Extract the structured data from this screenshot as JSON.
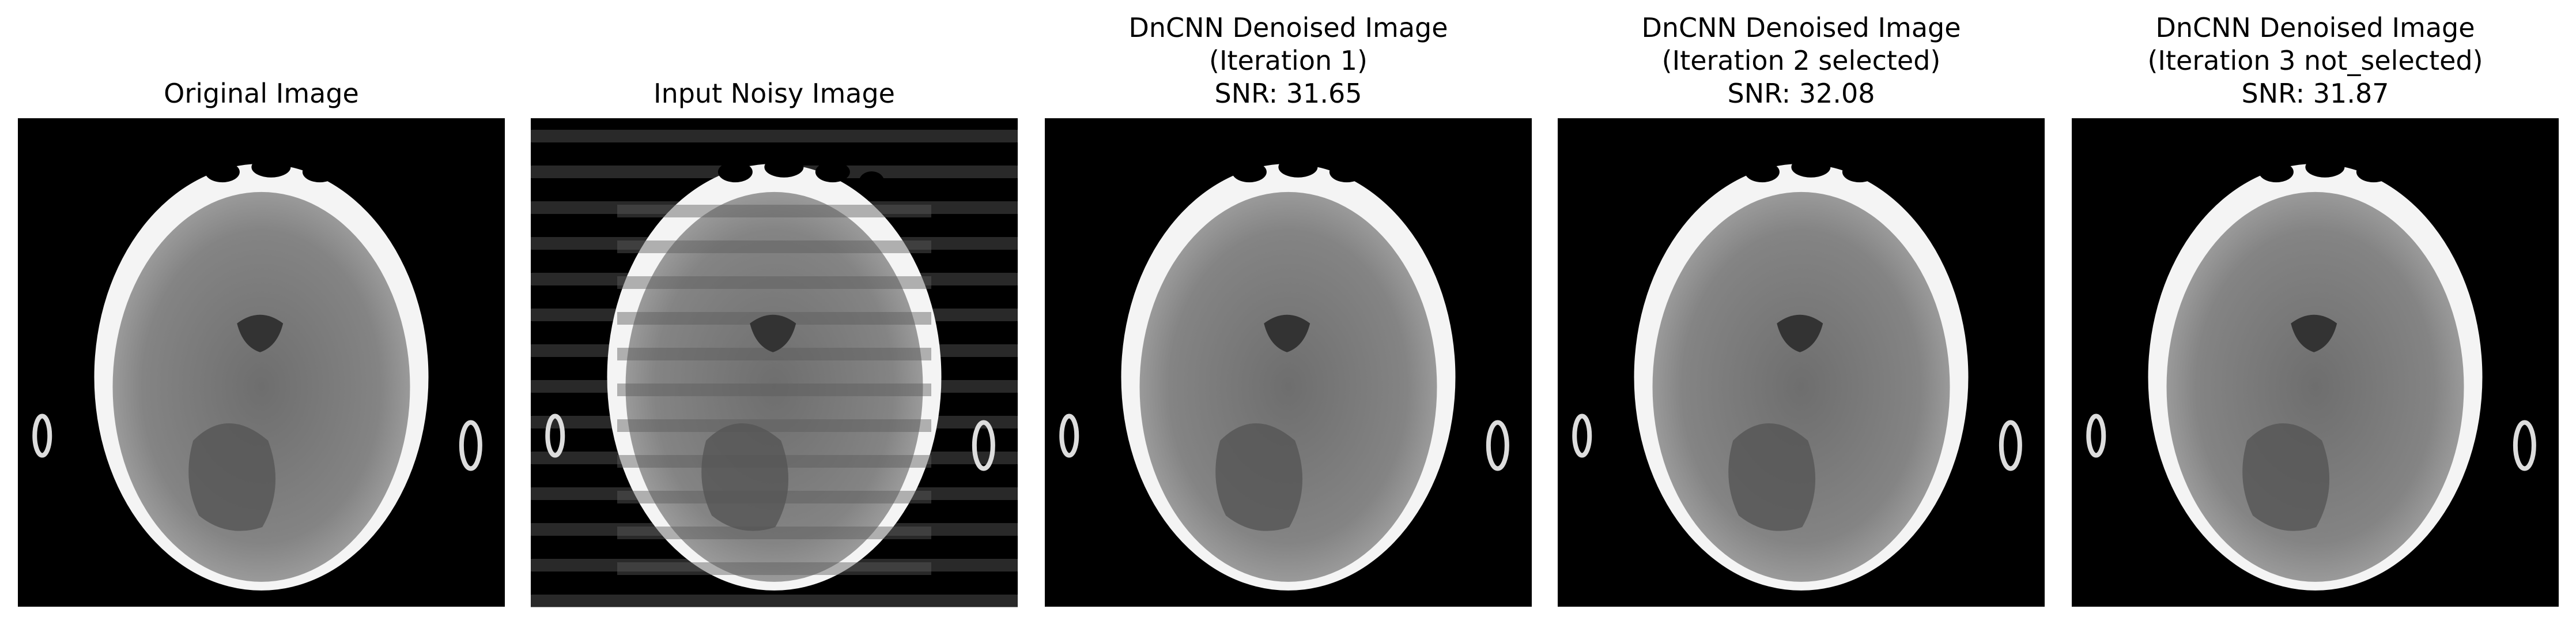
{
  "panels": [
    {
      "title": [
        "Original Image"
      ]
    },
    {
      "title": [
        "Input Noisy Image"
      ]
    },
    {
      "title": [
        "DnCNN Denoised Image",
        "(Iteration 1)",
        "SNR: 31.65"
      ]
    },
    {
      "title": [
        "DnCNN Denoised Image",
        "(Iteration 2 selected)",
        "SNR: 32.08"
      ]
    },
    {
      "title": [
        "DnCNN Denoised Image",
        "(Iteration 3 not_selected)",
        "SNR: 31.87"
      ]
    }
  ]
}
